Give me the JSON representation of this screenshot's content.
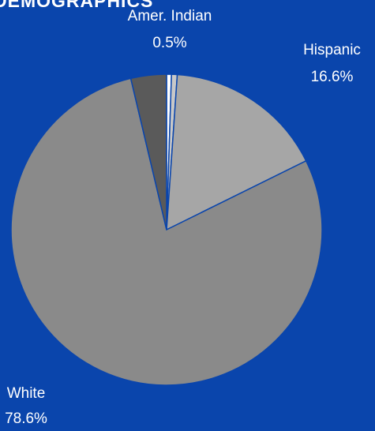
{
  "chart_data": {
    "type": "pie",
    "title": "DEMOGRAPHICS",
    "slices": [
      {
        "label": "Amer. Indian",
        "value": 0.5,
        "value_text": "0.5%",
        "color": "#ffffff",
        "show_label": true
      },
      {
        "label": "",
        "value": 0.6,
        "value_text": "",
        "color": "#c8c8c8",
        "show_label": false
      },
      {
        "label": "Hispanic",
        "value": 16.6,
        "value_text": "16.6%",
        "color": "#a6a6a6",
        "show_label": true
      },
      {
        "label": "White",
        "value": 78.6,
        "value_text": "78.6%",
        "color": "#8a8a8a",
        "show_label": true
      },
      {
        "label": "",
        "value": 3.7,
        "value_text": "",
        "color": "#5a5a5a",
        "show_label": false
      }
    ]
  }
}
